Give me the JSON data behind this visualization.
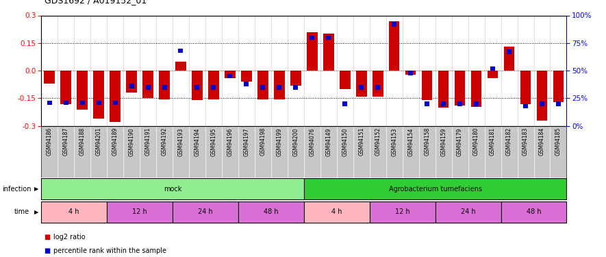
{
  "title": "GDS1692 / A019152_01",
  "samples": [
    "GSM94186",
    "GSM94187",
    "GSM94188",
    "GSM94201",
    "GSM94189",
    "GSM94190",
    "GSM94191",
    "GSM94192",
    "GSM94193",
    "GSM94194",
    "GSM94195",
    "GSM94196",
    "GSM94197",
    "GSM94198",
    "GSM94199",
    "GSM94200",
    "GSM94076",
    "GSM94149",
    "GSM94150",
    "GSM94151",
    "GSM94152",
    "GSM94153",
    "GSM94154",
    "GSM94158",
    "GSM94159",
    "GSM94179",
    "GSM94180",
    "GSM94181",
    "GSM94182",
    "GSM94183",
    "GSM94184",
    "GSM94185"
  ],
  "log2_ratio": [
    -0.07,
    -0.18,
    -0.21,
    -0.26,
    -0.28,
    -0.12,
    -0.15,
    -0.155,
    0.05,
    -0.16,
    -0.155,
    -0.04,
    -0.06,
    -0.155,
    -0.155,
    -0.08,
    0.21,
    0.2,
    -0.1,
    -0.14,
    -0.14,
    0.27,
    -0.02,
    -0.16,
    -0.2,
    -0.19,
    -0.195,
    -0.04,
    0.13,
    -0.18,
    -0.27,
    -0.17
  ],
  "percentile": [
    21,
    21,
    21,
    21,
    21,
    36,
    35,
    35,
    68,
    35,
    35,
    45,
    38,
    35,
    35,
    35,
    80,
    80,
    20,
    35,
    35,
    92,
    48,
    20,
    20,
    20,
    20,
    52,
    67,
    18,
    20,
    20
  ],
  "infection_groups": [
    {
      "label": "mock",
      "start": 0,
      "end": 16,
      "color": "#90EE90"
    },
    {
      "label": "Agrobacterium tumefaciens",
      "start": 16,
      "end": 32,
      "color": "#32CD32"
    }
  ],
  "time_groups": [
    {
      "label": "4 h",
      "start": 0,
      "end": 4,
      "color": "#FFB6C1"
    },
    {
      "label": "12 h",
      "start": 4,
      "end": 8,
      "color": "#DA70D6"
    },
    {
      "label": "24 h",
      "start": 8,
      "end": 12,
      "color": "#DA70D6"
    },
    {
      "label": "48 h",
      "start": 12,
      "end": 16,
      "color": "#DA70D6"
    },
    {
      "label": "4 h",
      "start": 16,
      "end": 20,
      "color": "#FFB6C1"
    },
    {
      "label": "12 h",
      "start": 20,
      "end": 24,
      "color": "#DA70D6"
    },
    {
      "label": "24 h",
      "start": 24,
      "end": 28,
      "color": "#DA70D6"
    },
    {
      "label": "48 h",
      "start": 28,
      "end": 32,
      "color": "#DA70D6"
    }
  ],
  "ylim": [
    -0.3,
    0.3
  ],
  "yticks_left": [
    -0.3,
    -0.15,
    0.0,
    0.15,
    0.3
  ],
  "yticks_right": [
    0,
    25,
    50,
    75,
    100
  ],
  "bar_color_red": "#CC0000",
  "bar_color_blue": "#0000CC",
  "background_color": "#ffffff",
  "tick_label_fontsize": 5.5,
  "row_label_fontsize": 7,
  "title_fontsize": 9
}
